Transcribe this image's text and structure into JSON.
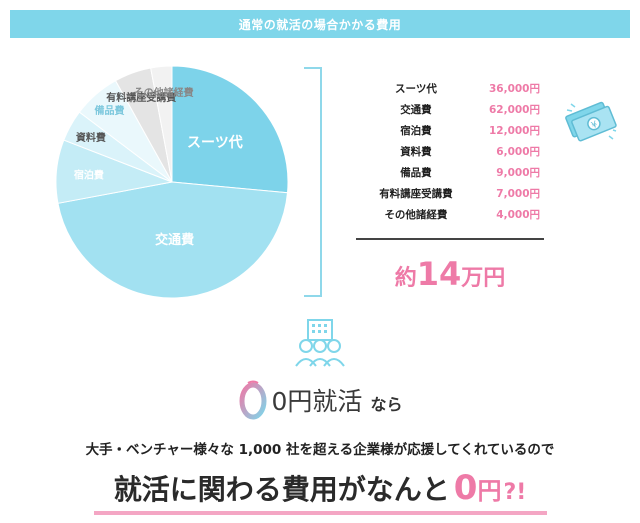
{
  "header": {
    "title": "通常の就活の場合かかる費用"
  },
  "pie": {
    "slices": [
      {
        "label": "スーツ代",
        "value": 36000,
        "color": "#7dd3ea",
        "label_color": "#ffffff"
      },
      {
        "label": "交通費",
        "value": 62000,
        "color": "#a2e1f1",
        "label_color": "#ffffff"
      },
      {
        "label": "宿泊費",
        "value": 12000,
        "color": "#c4ecf6",
        "label_color": "#ffffff"
      },
      {
        "label": "資料費",
        "value": 6000,
        "color": "#daf3fa",
        "label_color": "#555555"
      },
      {
        "label": "備品費",
        "value": 9000,
        "color": "#eaf8fc",
        "label_color": "#7dc8dd"
      },
      {
        "label": "有料講座受講費",
        "value": 7000,
        "color": "#e4e4e4",
        "label_color": "#555555"
      },
      {
        "label": "その他諸経費",
        "value": 4000,
        "color": "#f2f2f2",
        "label_color": "#888888"
      }
    ]
  },
  "cost_table": {
    "rows": [
      {
        "name": "スーツ代",
        "amount": "36,000円"
      },
      {
        "name": "交通費",
        "amount": "62,000円"
      },
      {
        "name": "宿泊費",
        "amount": "12,000円"
      },
      {
        "name": "資料費",
        "amount": "6,000円"
      },
      {
        "name": "備品費",
        "amount": "9,000円"
      },
      {
        "name": "有料講座受講費",
        "amount": "7,000円"
      },
      {
        "name": "その他諸経費",
        "amount": "4,000円"
      }
    ],
    "total_prefix": "約",
    "total_number": "14",
    "total_suffix": "万円"
  },
  "icons": {
    "money": "money-bills-icon",
    "team": "team-building-icon",
    "logo": "zero-yen-logo-icon"
  },
  "brand": {
    "name": "0円就活",
    "suffix": "なら"
  },
  "subtitle": "大手・ベンチャー様々な 1,000 社を超える企業様が応援してくれているので",
  "headline": {
    "text": "就活に関わる費用がなんと",
    "zero": "0",
    "yen": "円",
    "exclaim": "?!"
  },
  "colors": {
    "accent_blue": "#7fd6ea",
    "accent_pink": "#ee7aa7"
  }
}
